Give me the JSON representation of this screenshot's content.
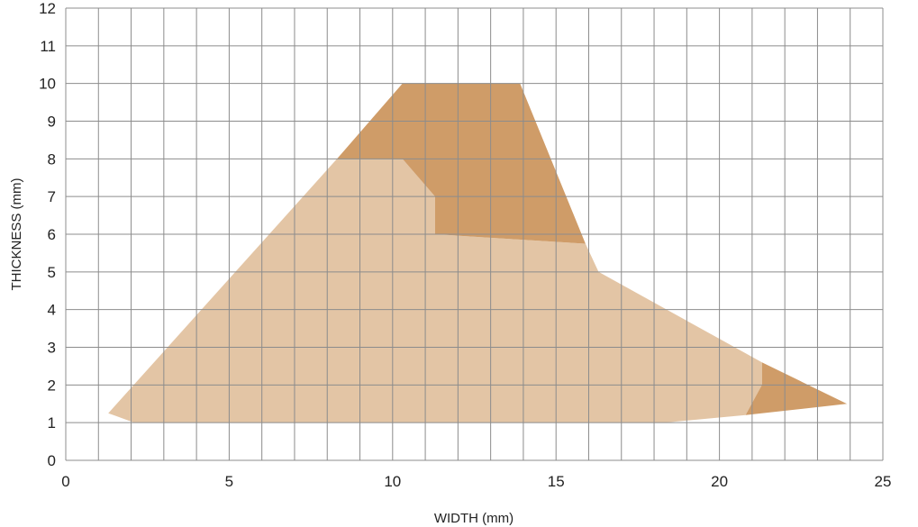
{
  "chart_data": {
    "type": "area",
    "title": "",
    "xlabel": "WIDTH (mm)",
    "ylabel": "THICKNESS (mm)",
    "xlim": [
      0,
      25
    ],
    "ylim": [
      0,
      12
    ],
    "grid": true,
    "x_minor_step": 1,
    "y_step": 1,
    "x_ticks": [
      "0",
      "5",
      "10",
      "15",
      "20",
      "25"
    ],
    "y_ticks": [
      "0",
      "1",
      "2",
      "3",
      "4",
      "5",
      "6",
      "7",
      "8",
      "9",
      "10",
      "11",
      "12"
    ],
    "regions": [
      {
        "color": "#e3c5a5",
        "points": [
          [
            1.3,
            1.25
          ],
          [
            2.1,
            1.0
          ],
          [
            18.3,
            1.0
          ],
          [
            20.8,
            1.2
          ],
          [
            21.3,
            2.0
          ],
          [
            21.3,
            2.6
          ],
          [
            16.3,
            5.0
          ],
          [
            15.9,
            5.75
          ],
          [
            11.3,
            6.0
          ],
          [
            11.3,
            7.0
          ],
          [
            10.3,
            8.0
          ],
          [
            8.3,
            8.0
          ]
        ]
      },
      {
        "color": "#cf9c68",
        "points": [
          [
            8.3,
            8.0
          ],
          [
            10.3,
            10.0
          ],
          [
            13.9,
            10.0
          ],
          [
            15.9,
            5.75
          ],
          [
            11.3,
            6.0
          ],
          [
            11.3,
            7.0
          ],
          [
            10.3,
            8.0
          ]
        ]
      },
      {
        "color": "#cf9c68",
        "points": [
          [
            21.3,
            2.6
          ],
          [
            23.9,
            1.5
          ],
          [
            20.8,
            1.2
          ],
          [
            21.3,
            2.0
          ]
        ]
      }
    ]
  }
}
